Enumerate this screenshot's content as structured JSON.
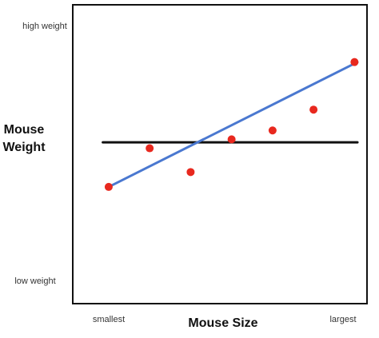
{
  "chart_data": {
    "type": "scatter",
    "title": "",
    "xlabel": "Mouse Size",
    "ylabel": "Mouse Weight",
    "x_tick_labels": {
      "min": "smallest",
      "max": "largest"
    },
    "y_tick_labels": {
      "max": "high weight",
      "min": "low weight"
    },
    "xlim": [
      0,
      1
    ],
    "ylim": [
      0,
      1
    ],
    "grid": false,
    "series": [
      {
        "points": [
          {
            "x": 0.12,
            "y": 0.39
          },
          {
            "x": 0.26,
            "y": 0.52
          },
          {
            "x": 0.4,
            "y": 0.44
          },
          {
            "x": 0.54,
            "y": 0.55
          },
          {
            "x": 0.68,
            "y": 0.58
          },
          {
            "x": 0.82,
            "y": 0.65
          },
          {
            "x": 0.96,
            "y": 0.81
          }
        ],
        "color": "#e8281e"
      }
    ],
    "lines": [
      {
        "x": [
          0.1,
          0.97
        ],
        "y": [
          0.54,
          0.54
        ],
        "color": "#111111"
      },
      {
        "x": [
          0.12,
          0.97
        ],
        "y": [
          0.39,
          0.81
        ],
        "color": "#4a78d0"
      }
    ]
  }
}
